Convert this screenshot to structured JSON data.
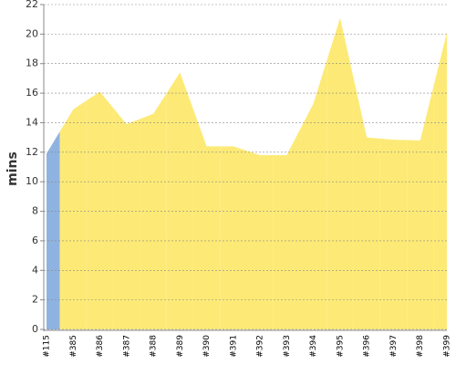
{
  "chart_data": {
    "type": "area",
    "y_label": "mins",
    "categories": [
      "#115",
      "#385",
      "#386",
      "#387",
      "#388",
      "#389",
      "#390",
      "#391",
      "#392",
      "#393",
      "#394",
      "#395",
      "#396",
      "#397",
      "#398",
      "#399"
    ],
    "values": [
      11.9,
      14.9,
      16.1,
      13.9,
      14.6,
      17.4,
      12.4,
      12.4,
      11.8,
      11.8,
      15.3,
      21.1,
      13.0,
      12.85,
      12.8,
      20.1
    ],
    "colors": [
      "#8fb3e0",
      "#fdea76",
      "#fdea76",
      "#fdea76",
      "#fdea76",
      "#fdea76",
      "#fdea76",
      "#fdea76",
      "#fdea76",
      "#fdea76",
      "#fdea76",
      "#fdea76",
      "#fdea76",
      "#fdea76",
      "#fdea76",
      "#fdea76"
    ],
    "ylim": [
      0,
      22
    ],
    "yticks": [
      0,
      2,
      4,
      6,
      8,
      10,
      12,
      14,
      16,
      18,
      20,
      22
    ],
    "grid": true
  }
}
